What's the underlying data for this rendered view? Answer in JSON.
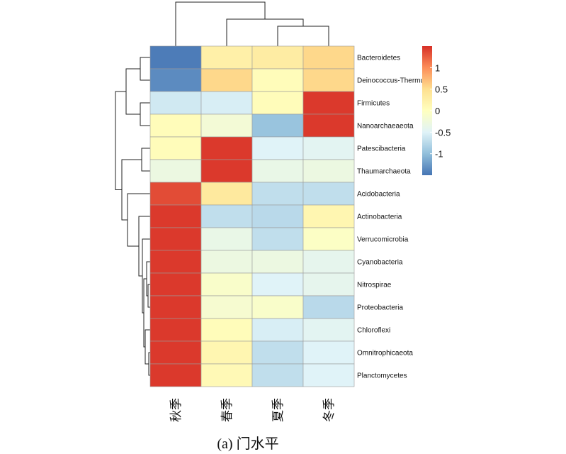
{
  "caption": "(a) 门水平",
  "chart_data": {
    "type": "heatmap",
    "columns": [
      "秋季",
      "春季",
      "夏季",
      "冬季"
    ],
    "rows": [
      "Bacteroidetes",
      "Deinococcus-Thermus",
      "Firmicutes",
      "Nanoarchaeaeota",
      "Patescibacteria",
      "Thaumarchaeota",
      "Acidobacteria",
      "Actinobacteria",
      "Verrucomicrobia",
      "Cyanobacteria",
      "Nitrospirae",
      "Proteobacteria",
      "Chloroflexi",
      "Omnitrophicaeota",
      "Planctomycetes"
    ],
    "values": [
      [
        -1.45,
        0.25,
        0.3,
        0.55
      ],
      [
        -1.35,
        0.55,
        0.05,
        0.55
      ],
      [
        -0.6,
        -0.55,
        0.05,
        1.45
      ],
      [
        0.05,
        -0.2,
        -0.95,
        1.45
      ],
      [
        0.05,
        1.45,
        -0.5,
        -0.45
      ],
      [
        -0.3,
        1.45,
        -0.35,
        -0.3
      ],
      [
        1.35,
        0.35,
        -0.7,
        -0.7
      ],
      [
        1.45,
        -0.7,
        -0.75,
        0.15
      ],
      [
        1.45,
        -0.35,
        -0.7,
        -0.05
      ],
      [
        1.45,
        -0.3,
        -0.3,
        -0.4
      ],
      [
        1.45,
        -0.1,
        -0.5,
        -0.4
      ],
      [
        1.45,
        -0.15,
        -0.1,
        -0.75
      ],
      [
        1.45,
        0.05,
        -0.55,
        -0.45
      ],
      [
        1.45,
        0.15,
        -0.7,
        -0.5
      ],
      [
        1.45,
        0.1,
        -0.7,
        -0.5
      ]
    ],
    "color_scale": {
      "min": -1.5,
      "max": 1.5,
      "stops": [
        "#4575b4",
        "#91bfdb",
        "#e0f3f8",
        "#ffffbf",
        "#fee090",
        "#fc8d59",
        "#d73027"
      ]
    },
    "legend_ticks": [
      {
        "value": 1,
        "label": "1"
      },
      {
        "value": 0.5,
        "label": "0.5"
      },
      {
        "value": 0,
        "label": "0"
      },
      {
        "value": -0.5,
        "label": "-0.5"
      },
      {
        "value": -1,
        "label": "-1"
      }
    ]
  }
}
